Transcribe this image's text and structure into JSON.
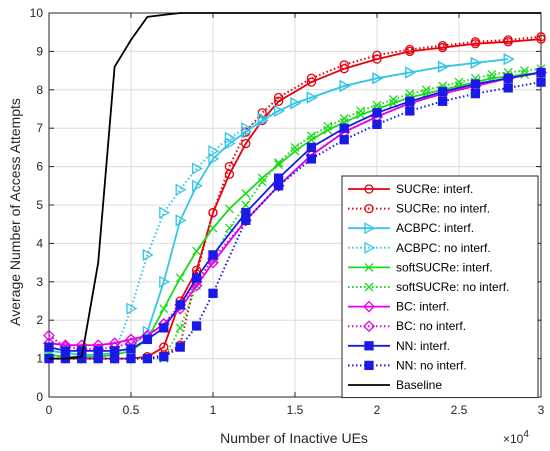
{
  "chart_data": {
    "type": "line",
    "xlabel": "Number of Inactive UEs",
    "ylabel": "Average Number of Access Attempts",
    "x_multiplier_label": "×10",
    "x_multiplier_exp": "4",
    "xlim": [
      0,
      30000
    ],
    "ylim": [
      0,
      10
    ],
    "xticks": [
      0,
      5000,
      10000,
      15000,
      20000,
      25000,
      30000
    ],
    "xtick_labels": [
      "0",
      "0.5",
      "1",
      "1.5",
      "2",
      "2.5",
      "3"
    ],
    "yticks": [
      0,
      1,
      2,
      3,
      4,
      5,
      6,
      7,
      8,
      9,
      10
    ],
    "ytick_labels": [
      "0",
      "1",
      "2",
      "3",
      "4",
      "5",
      "6",
      "7",
      "8",
      "9",
      "10"
    ],
    "grid": true,
    "legend_position": "bottom-right",
    "series": [
      {
        "name": "SUCRe: interf.",
        "color": "#e8000b",
        "dash": "solid",
        "marker": "circle",
        "x": [
          0,
          1000,
          2000,
          3000,
          4000,
          5000,
          6000,
          7000,
          8000,
          9000,
          10000,
          11000,
          12000,
          13000,
          14000,
          16000,
          18000,
          20000,
          22000,
          24000,
          26000,
          28000,
          30000
        ],
        "y": [
          1.0,
          1.0,
          1.0,
          1.0,
          1.0,
          1.0,
          1.05,
          1.3,
          2.5,
          3.3,
          4.8,
          5.8,
          6.6,
          7.2,
          7.7,
          8.2,
          8.55,
          8.8,
          9.0,
          9.1,
          9.2,
          9.25,
          9.32
        ]
      },
      {
        "name": "SUCRe: no interf.",
        "color": "#e8000b",
        "dash": "dotted",
        "marker": "circle",
        "x": [
          0,
          1000,
          2000,
          3000,
          4000,
          5000,
          6000,
          7000,
          8000,
          9000,
          10000,
          11000,
          12000,
          13000,
          14000,
          16000,
          18000,
          20000,
          22000,
          24000,
          26000,
          28000,
          30000
        ],
        "y": [
          1.0,
          1.0,
          1.0,
          1.0,
          1.0,
          1.0,
          1.0,
          1.1,
          1.35,
          3.2,
          4.8,
          6.0,
          6.9,
          7.4,
          7.8,
          8.3,
          8.65,
          8.9,
          9.05,
          9.15,
          9.25,
          9.3,
          9.38
        ]
      },
      {
        "name": "ACBPC: interf.",
        "color": "#33c6e8",
        "dash": "solid",
        "marker": "triangle-right",
        "x": [
          0,
          1000,
          2000,
          3000,
          4000,
          5000,
          6000,
          7000,
          8000,
          9000,
          10000,
          11000,
          12000,
          13000,
          14000,
          15000,
          16000,
          18000,
          20000,
          22000,
          24000,
          26000,
          28000
        ],
        "y": [
          1.2,
          1.15,
          1.1,
          1.1,
          1.15,
          1.3,
          1.7,
          3.0,
          4.6,
          5.5,
          6.2,
          6.6,
          6.9,
          7.2,
          7.45,
          7.65,
          7.8,
          8.1,
          8.3,
          8.45,
          8.6,
          8.7,
          8.8
        ]
      },
      {
        "name": "ACBPC: no interf.",
        "color": "#33c6e8",
        "dash": "dotted",
        "marker": "triangle-right",
        "x": [
          0,
          1000,
          2000,
          3000,
          4000,
          5000,
          6000,
          7000,
          8000,
          9000,
          10000,
          11000,
          12000,
          13000,
          14000,
          15000,
          16000,
          18000,
          20000,
          22000,
          24000,
          26000,
          28000
        ],
        "y": [
          1.1,
          1.05,
          1.05,
          1.05,
          1.15,
          2.3,
          3.7,
          4.8,
          5.4,
          5.95,
          6.4,
          6.75,
          7.0,
          7.25,
          7.45,
          7.65,
          7.8,
          8.1,
          8.3,
          8.45,
          8.6,
          8.7,
          8.8
        ]
      },
      {
        "name": "softSUCRe: interf.",
        "color": "#1adb1a",
        "dash": "solid",
        "marker": "x",
        "x": [
          0,
          1000,
          2000,
          3000,
          4000,
          5000,
          6000,
          7000,
          8000,
          9000,
          10000,
          11000,
          12000,
          13000,
          14000,
          15000,
          16000,
          17000,
          18000,
          19000,
          20000,
          21000,
          22000,
          23000,
          24000,
          25000,
          26000,
          27000,
          28000,
          29000,
          30000
        ],
        "y": [
          1.1,
          1.05,
          1.05,
          1.05,
          1.1,
          1.2,
          1.5,
          2.3,
          3.1,
          3.8,
          4.4,
          4.9,
          5.3,
          5.7,
          6.05,
          6.4,
          6.7,
          6.95,
          7.15,
          7.35,
          7.5,
          7.65,
          7.8,
          7.9,
          8.0,
          8.1,
          8.2,
          8.3,
          8.35,
          8.4,
          8.45
        ]
      },
      {
        "name": "softSUCRe: no interf.",
        "color": "#1adb1a",
        "dash": "dotted",
        "marker": "x",
        "x": [
          0,
          1000,
          2000,
          3000,
          4000,
          5000,
          6000,
          7000,
          8000,
          9000,
          10000,
          11000,
          12000,
          13000,
          14000,
          15000,
          16000,
          17000,
          18000,
          19000,
          20000,
          21000,
          22000,
          23000,
          24000,
          25000,
          26000,
          27000,
          28000,
          29000,
          30000
        ],
        "y": [
          1.0,
          1.0,
          1.0,
          1.0,
          1.0,
          1.0,
          1.0,
          1.0,
          1.8,
          2.9,
          3.6,
          4.4,
          5.0,
          5.6,
          6.1,
          6.5,
          6.8,
          7.05,
          7.25,
          7.45,
          7.6,
          7.75,
          7.9,
          8.0,
          8.1,
          8.2,
          8.3,
          8.4,
          8.45,
          8.5,
          8.55
        ]
      },
      {
        "name": "BC: interf.",
        "color": "#e600e6",
        "dash": "solid",
        "marker": "diamond",
        "x": [
          0,
          1000,
          2000,
          3000,
          4000,
          5000,
          6000,
          7000,
          8000,
          9000,
          10000,
          12000,
          14000,
          16000,
          18000,
          20000,
          22000,
          24000,
          26000,
          28000,
          30000
        ],
        "y": [
          1.4,
          1.35,
          1.35,
          1.35,
          1.4,
          1.5,
          1.6,
          1.9,
          2.3,
          2.9,
          3.5,
          4.6,
          5.5,
          6.3,
          6.9,
          7.3,
          7.65,
          7.9,
          8.1,
          8.3,
          8.45
        ]
      },
      {
        "name": "BC: no interf.",
        "color": "#e600e6",
        "dash": "dotted",
        "marker": "diamond",
        "x": [
          0,
          1000,
          2000,
          3000,
          4000,
          5000,
          6000,
          7000,
          8000,
          9000,
          10000,
          12000,
          14000,
          16000,
          18000,
          20000,
          22000,
          24000,
          26000,
          28000,
          30000
        ],
        "y": [
          1.6,
          1.3,
          1.25,
          1.25,
          1.3,
          1.4,
          1.6,
          1.9,
          2.4,
          3.0,
          3.6,
          4.6,
          5.5,
          6.3,
          6.9,
          7.3,
          7.65,
          7.9,
          8.1,
          8.3,
          8.45
        ]
      },
      {
        "name": "NN: interf.",
        "color": "#1a1ae6",
        "dash": "solid",
        "marker": "square",
        "x": [
          0,
          1000,
          2000,
          3000,
          4000,
          5000,
          6000,
          7000,
          8000,
          9000,
          10000,
          12000,
          14000,
          16000,
          18000,
          20000,
          22000,
          24000,
          26000,
          28000,
          30000
        ],
        "y": [
          1.3,
          1.2,
          1.2,
          1.2,
          1.2,
          1.25,
          1.5,
          1.8,
          2.4,
          3.1,
          3.7,
          4.8,
          5.7,
          6.5,
          7.0,
          7.4,
          7.7,
          7.95,
          8.15,
          8.3,
          8.45
        ]
      },
      {
        "name": "NN: no interf.",
        "color": "#1a1ae6",
        "dash": "dotted",
        "marker": "square",
        "x": [
          0,
          1000,
          2000,
          3000,
          4000,
          5000,
          6000,
          7000,
          8000,
          9000,
          10000,
          12000,
          14000,
          16000,
          18000,
          20000,
          22000,
          24000,
          26000,
          28000,
          30000
        ],
        "y": [
          1.0,
          1.0,
          1.0,
          1.0,
          1.0,
          1.0,
          1.0,
          1.05,
          1.3,
          1.85,
          2.7,
          4.6,
          5.5,
          6.2,
          6.7,
          7.1,
          7.45,
          7.7,
          7.9,
          8.05,
          8.2
        ]
      },
      {
        "name": "Baseline",
        "color": "#000000",
        "dash": "solid",
        "marker": "none",
        "x": [
          0,
          1000,
          2000,
          3000,
          4000,
          5000,
          6000,
          7000,
          8000,
          9000,
          10000,
          15000,
          20000,
          25000,
          30000
        ],
        "y": [
          1.0,
          1.0,
          1.05,
          3.5,
          8.6,
          9.3,
          9.9,
          9.95,
          10.0,
          10.0,
          10.0,
          10.0,
          10.0,
          10.0,
          10.0
        ]
      }
    ]
  }
}
